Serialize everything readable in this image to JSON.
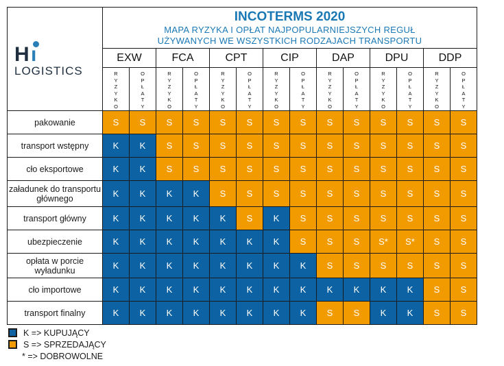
{
  "logo": {
    "mark": "Hi",
    "word": "LOGISTICS"
  },
  "title": {
    "main": "INCOTERMS 2020",
    "line1": "MAPA RYZYKA I OPŁAT NAJPOPULARNIEJSZYCH REGUŁ",
    "line2": "UŻYWANYCH WE WSZYSTKICH RODZAJACH TRANSPORTU"
  },
  "terms": [
    "EXW",
    "FCA",
    "CPT",
    "CIP",
    "DAP",
    "DPU",
    "DDP"
  ],
  "subcolumns": {
    "risk": "RYZYKO",
    "costs": "OPŁATY"
  },
  "rows": [
    {
      "label": "pakowanie",
      "cells": [
        "S",
        "S",
        "S",
        "S",
        "S",
        "S",
        "S",
        "S",
        "S",
        "S",
        "S",
        "S",
        "S",
        "S"
      ]
    },
    {
      "label": "transport wstępny",
      "cells": [
        "K",
        "K",
        "S",
        "S",
        "S",
        "S",
        "S",
        "S",
        "S",
        "S",
        "S",
        "S",
        "S",
        "S"
      ]
    },
    {
      "label": "cło eksportowe",
      "cells": [
        "K",
        "K",
        "S",
        "S",
        "S",
        "S",
        "S",
        "S",
        "S",
        "S",
        "S",
        "S",
        "S",
        "S"
      ]
    },
    {
      "label": "załadunek do transportu głównego",
      "cells": [
        "K",
        "K",
        "K",
        "K",
        "S",
        "S",
        "S",
        "S",
        "S",
        "S",
        "S",
        "S",
        "S",
        "S"
      ]
    },
    {
      "label": "transport główny",
      "cells": [
        "K",
        "K",
        "K",
        "K",
        "K",
        "S",
        "K",
        "S",
        "S",
        "S",
        "S",
        "S",
        "S",
        "S"
      ]
    },
    {
      "label": "ubezpieczenie",
      "cells": [
        "K",
        "K",
        "K",
        "K",
        "K",
        "K",
        "K",
        "S",
        "S",
        "S",
        "S*",
        "S*",
        "S",
        "S"
      ]
    },
    {
      "label": "opłata w porcie wyładunku",
      "cells": [
        "K",
        "K",
        "K",
        "K",
        "K",
        "K",
        "K",
        "K",
        "S",
        "S",
        "S",
        "S",
        "S",
        "S"
      ]
    },
    {
      "label": "cło importowe",
      "cells": [
        "K",
        "K",
        "K",
        "K",
        "K",
        "K",
        "K",
        "K",
        "K",
        "K",
        "K",
        "K",
        "S",
        "S"
      ]
    },
    {
      "label": "transport finalny",
      "cells": [
        "K",
        "K",
        "K",
        "K",
        "K",
        "K",
        "K",
        "K",
        "S",
        "S",
        "K",
        "K",
        "S",
        "S"
      ]
    }
  ],
  "legend": {
    "buyer": "K => KUPUJĄCY",
    "seller": "S => SPRZEDAJĄCY",
    "optional": "* => DOBROWOLNE"
  },
  "colors": {
    "buyer": "#0c62a3",
    "seller": "#f29b00",
    "title": "#1a78b4"
  }
}
